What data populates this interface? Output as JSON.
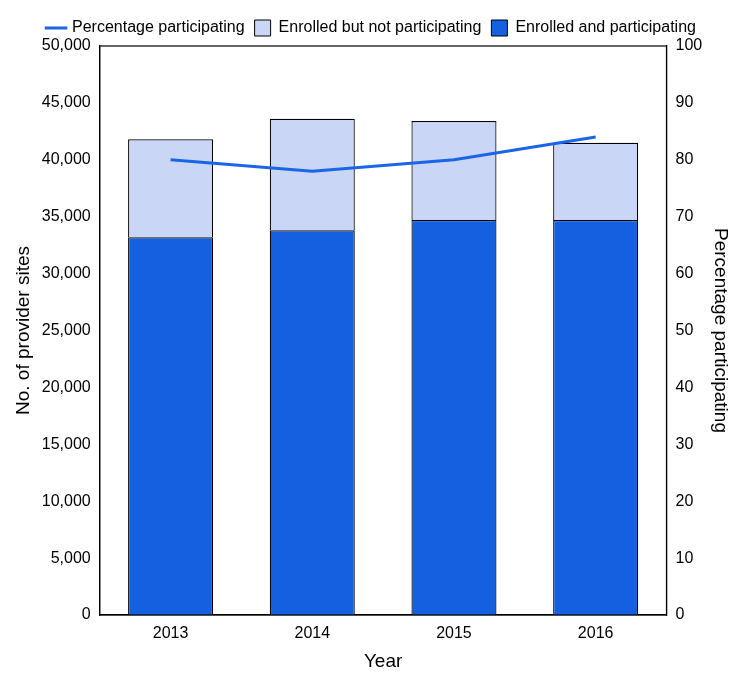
{
  "chart_data": {
    "type": "bar",
    "stacked": true,
    "legend": "top",
    "grid": false,
    "x_label": "Year",
    "y_label": "No. of provider sites",
    "y2_label": "Percentage participating",
    "categories": [
      "2013",
      "2014",
      "2015",
      "2016"
    ],
    "ylim": [
      0,
      50000
    ],
    "yticks": [
      0,
      {
        "value": 5000,
        "label": "5,000"
      },
      {
        "value": 10000,
        "label": "10,000"
      },
      {
        "value": 15000,
        "label": "15,000"
      },
      {
        "value": 20000,
        "label": "20,000"
      },
      {
        "value": 25000,
        "label": "25,000"
      },
      {
        "value": 30000,
        "label": "30,000"
      },
      {
        "value": 35000,
        "label": "35,000"
      },
      {
        "value": 40000,
        "label": "40,000"
      },
      {
        "value": 45000,
        "label": "45,000"
      },
      {
        "value": 50000,
        "label": "50,000"
      }
    ],
    "y2lim": [
      0,
      100
    ],
    "y2ticks": [
      0,
      10,
      20,
      30,
      40,
      50,
      60,
      70,
      80,
      90,
      100
    ],
    "series": [
      {
        "name": "Enrolled and participating",
        "type": "bar",
        "color": "#1560e0",
        "values": [
          33200,
          33800,
          34700,
          34700
        ]
      },
      {
        "name": "Enrolled but not participating",
        "type": "bar",
        "color": "#c9d6f6",
        "values": [
          8600,
          9800,
          8700,
          6800
        ]
      },
      {
        "name": "Percentage participating",
        "type": "line",
        "axis": "y2",
        "color": "#1a66e6",
        "values": [
          80,
          78,
          80,
          84
        ]
      }
    ]
  }
}
